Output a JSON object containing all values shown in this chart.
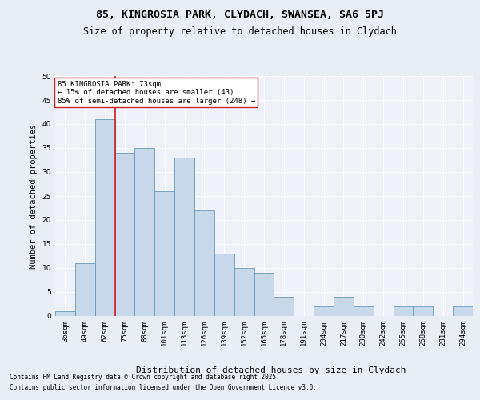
{
  "title1": "85, KINGROSIA PARK, CLYDACH, SWANSEA, SA6 5PJ",
  "title2": "Size of property relative to detached houses in Clydach",
  "xlabel": "Distribution of detached houses by size in Clydach",
  "ylabel": "Number of detached properties",
  "categories": [
    "36sqm",
    "49sqm",
    "62sqm",
    "75sqm",
    "88sqm",
    "101sqm",
    "113sqm",
    "126sqm",
    "139sqm",
    "152sqm",
    "165sqm",
    "178sqm",
    "191sqm",
    "204sqm",
    "217sqm",
    "230sqm",
    "242sqm",
    "255sqm",
    "268sqm",
    "281sqm",
    "294sqm"
  ],
  "values": [
    1,
    11,
    41,
    34,
    35,
    26,
    33,
    22,
    13,
    10,
    9,
    4,
    0,
    2,
    4,
    2,
    0,
    2,
    2,
    0,
    2
  ],
  "bar_color": "#c8d8e8",
  "bar_edge_color": "#6699bb",
  "vline_x_index": 2.5,
  "vline_color": "#cc2222",
  "annotation_text": "85 KINGROSIA PARK: 73sqm\n← 15% of detached houses are smaller (43)\n85% of semi-detached houses are larger (248) →",
  "annotation_box_color": "#ffffff",
  "annotation_box_edge": "#cc2222",
  "bg_color": "#e8eef4",
  "plot_bg_color": "#eef2f8",
  "grid_color": "#ffffff",
  "ylim": [
    0,
    50
  ],
  "yticks": [
    0,
    5,
    10,
    15,
    20,
    25,
    30,
    35,
    40,
    45,
    50
  ],
  "footnote1": "Contains HM Land Registry data © Crown copyright and database right 2025.",
  "footnote2": "Contains public sector information licensed under the Open Government Licence v3.0.",
  "title1_fontsize": 9.5,
  "title2_fontsize": 8.5,
  "xlabel_fontsize": 8,
  "ylabel_fontsize": 7.5,
  "tick_fontsize": 6.5,
  "annot_fontsize": 6.5,
  "footnote_fontsize": 5.5
}
